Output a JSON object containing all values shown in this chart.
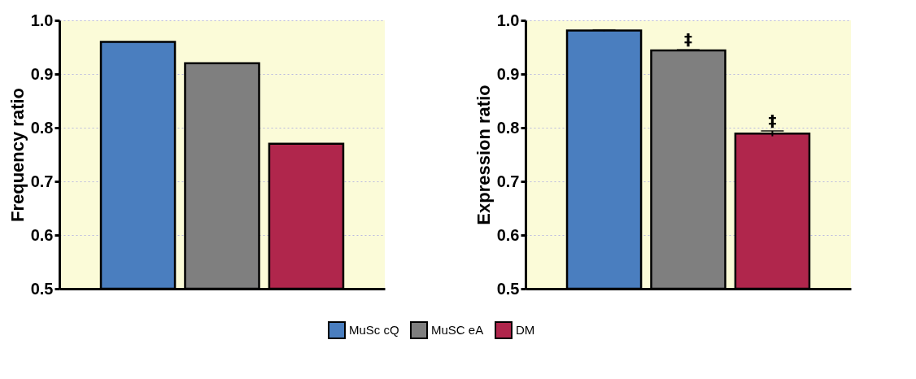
{
  "chart_data": [
    {
      "type": "bar",
      "ylabel": "Frequency ratio",
      "categories": [
        null
      ],
      "ylim": [
        0.5,
        1.0
      ],
      "yticks": [
        0.5,
        0.6,
        0.7,
        0.8,
        0.9,
        {
          "value": 1.0,
          "label": "1.0"
        }
      ],
      "grid": "y",
      "legend": "bottom",
      "series": [
        {
          "name": "MuSc cQ",
          "color": "#4a7ebf",
          "values": [
            0.96
          ]
        },
        {
          "name": "MuSC eA",
          "color": "#7f7f7f",
          "values": [
            0.92
          ]
        },
        {
          "name": "DM",
          "color": "#b0264c",
          "values": [
            0.77
          ]
        }
      ]
    },
    {
      "type": "bar",
      "ylabel": "Expression ratio",
      "categories": [
        null
      ],
      "ylim": [
        0.5,
        1.0
      ],
      "yticks": [
        0.5,
        0.6,
        0.7,
        0.8,
        0.9,
        {
          "value": 1.0,
          "label": "1.0"
        }
      ],
      "grid": "y",
      "annotations": [
        "‡",
        "‡"
      ],
      "series": [
        {
          "color": "#4a7ebf",
          "values": [
            0.981
          ],
          "errors": [
            0.001
          ]
        },
        {
          "color": "#7f7f7f",
          "values": [
            0.944
          ],
          "errors": [
            0.001
          ]
        },
        {
          "color": "#b0264c",
          "values": [
            0.789
          ],
          "errors": [
            0.005
          ]
        }
      ]
    }
  ]
}
